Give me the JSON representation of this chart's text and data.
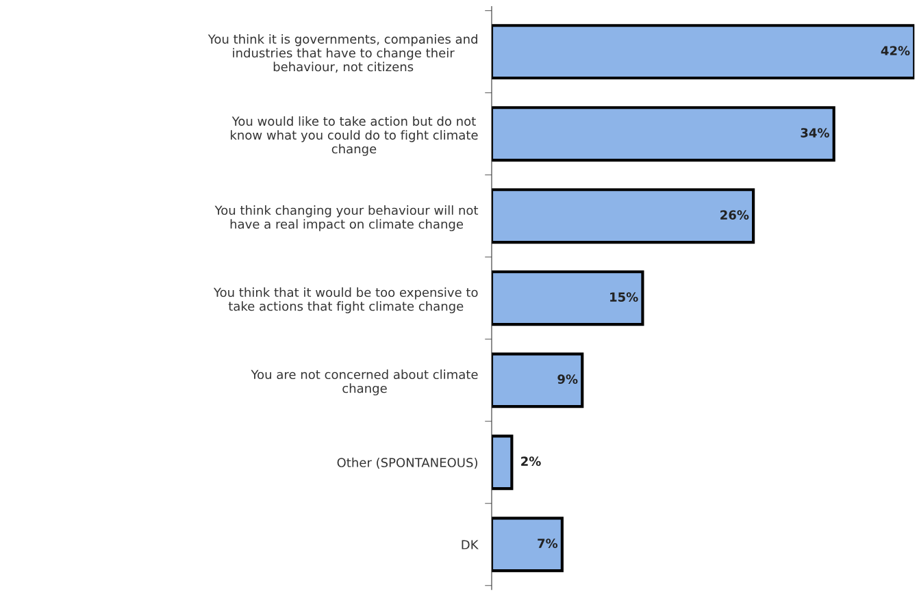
{
  "chart_data": {
    "type": "bar",
    "orientation": "horizontal",
    "categories": [
      "You think it is governments, companies and\nindustries that have to change their\nbehaviour, not citizens",
      "You would like to take action but do not\nknow what you could do to fight climate\nchange",
      "You think changing your behaviour will not\nhave a real impact on climate change",
      "You think that it would be too expensive to\ntake actions that fight climate change",
      "You are not concerned about climate\nchange",
      "Other (SPONTANEOUS)",
      "DK"
    ],
    "values": [
      42,
      34,
      26,
      15,
      9,
      2,
      7
    ],
    "value_labels": [
      "42%",
      "34%",
      "26%",
      "15%",
      "9%",
      "2%",
      "7%"
    ],
    "color": "#8db4e8",
    "tick_labels": "y",
    "grid": false,
    "legend": false
  }
}
